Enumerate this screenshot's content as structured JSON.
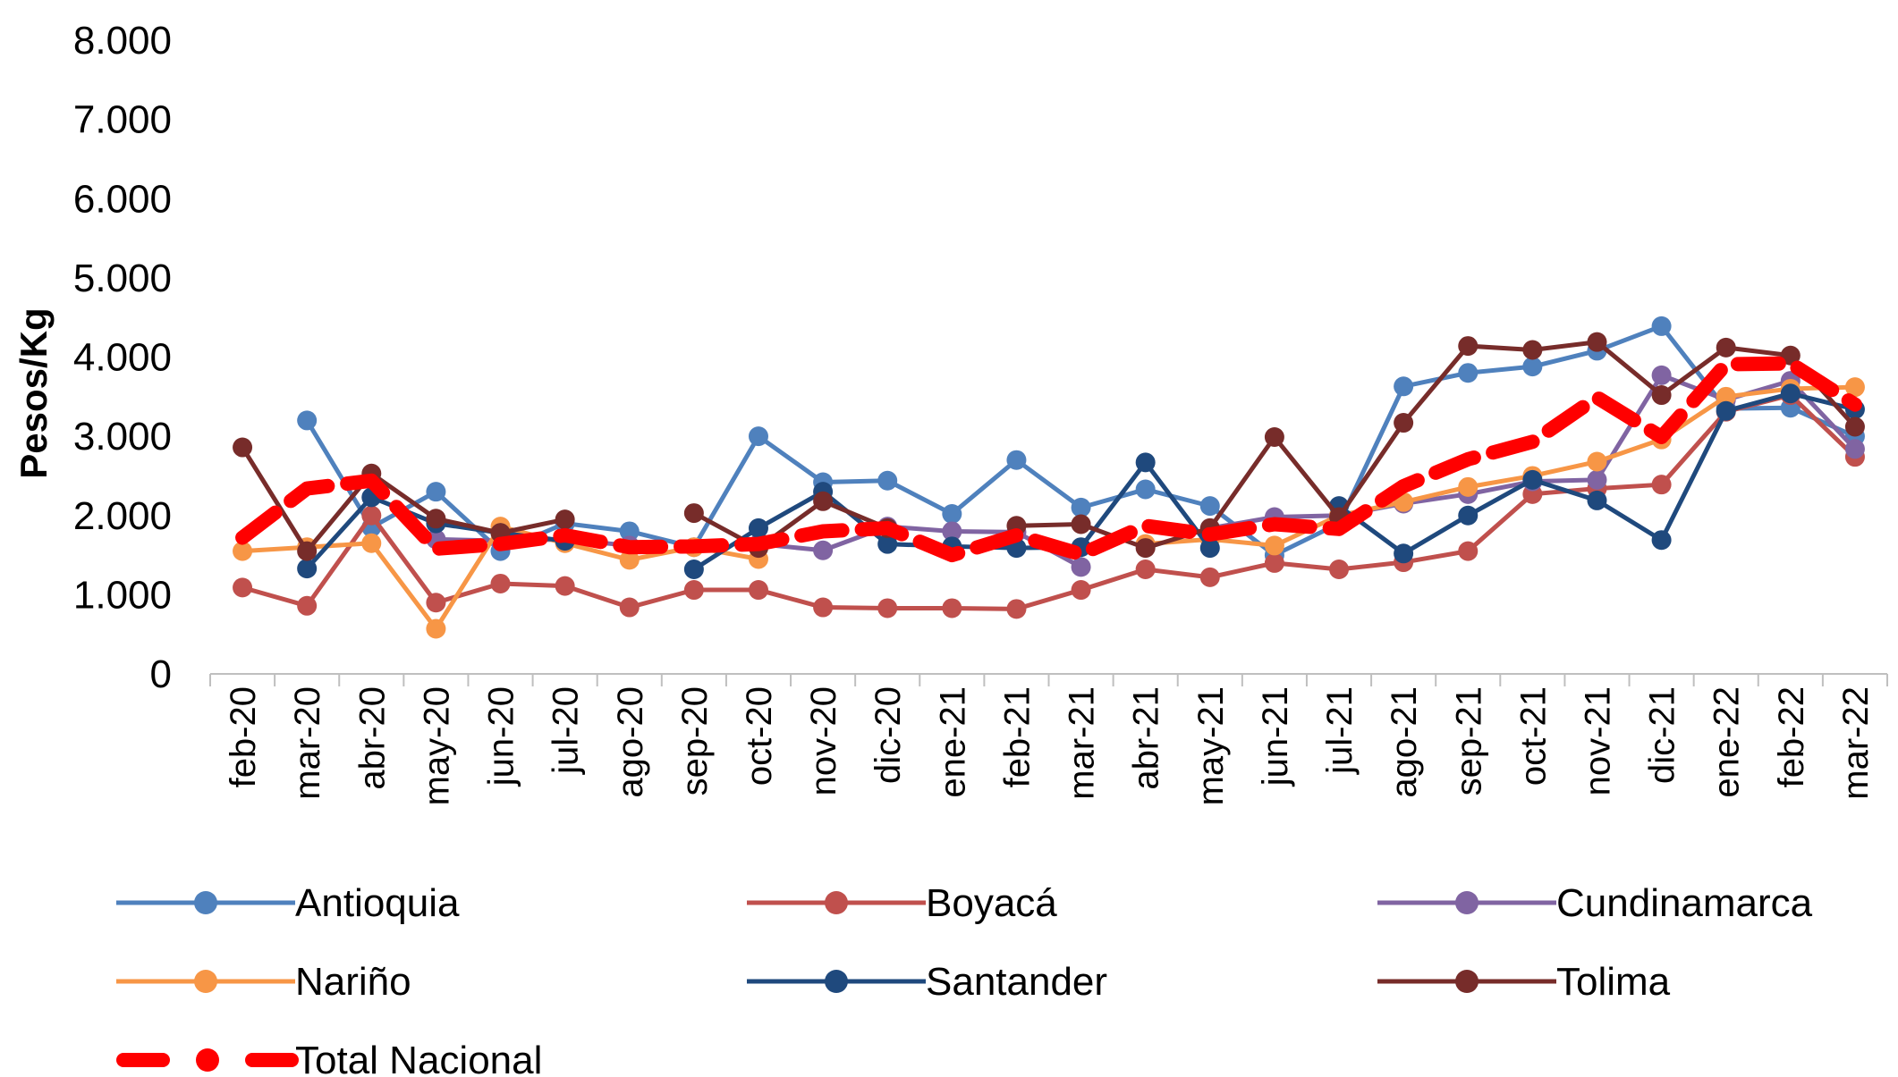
{
  "chart_data": {
    "type": "line",
    "title": "",
    "xlabel": "",
    "ylabel": "Pesos/Kg",
    "ylim": [
      0,
      8000
    ],
    "yticks": [
      0,
      1000,
      2000,
      3000,
      4000,
      5000,
      6000,
      7000,
      8000
    ],
    "ytick_labels": [
      "0",
      "1.000",
      "2.000",
      "3.000",
      "4.000",
      "5.000",
      "6.000",
      "7.000",
      "8.000"
    ],
    "grid": false,
    "legend_position": "bottom",
    "categories": [
      "feb-20",
      "mar-20",
      "abr-20",
      "may-20",
      "jun-20",
      "jul-20",
      "ago-20",
      "sep-20",
      "oct-20",
      "nov-20",
      "dic-20",
      "ene-21",
      "feb-21",
      "mar-21",
      "abr-21",
      "may-21",
      "jun-21",
      "jul-21",
      "ago-21",
      "sep-21",
      "oct-21",
      "nov-21",
      "dic-21",
      "ene-22",
      "feb-22",
      "mar-22"
    ],
    "series": [
      {
        "name": "Antioquia",
        "color": "#4F81BD",
        "style": "solid-markers",
        "values": [
          null,
          3200,
          1850,
          2300,
          1550,
          1900,
          1800,
          1600,
          3000,
          2420,
          2440,
          2020,
          2700,
          2100,
          2330,
          2120,
          1500,
          1900,
          3630,
          3800,
          3880,
          4080,
          4390,
          3350,
          3360,
          3000
        ]
      },
      {
        "name": "Boyacá",
        "color": "#C0504D",
        "style": "solid-markers",
        "values": [
          1090,
          860,
          2000,
          900,
          1140,
          1110,
          840,
          1060,
          1060,
          840,
          830,
          830,
          820,
          1060,
          1320,
          1220,
          1400,
          1320,
          1410,
          1550,
          2270,
          2340,
          2390,
          3310,
          3520,
          2740
        ]
      },
      {
        "name": "Cundinamarca",
        "color": "#8064A2",
        "style": "solid-markers",
        "values": [
          null,
          null,
          null,
          1700,
          1680,
          1700,
          1620,
          null,
          1640,
          1560,
          1860,
          1800,
          1790,
          1350,
          null,
          1840,
          1980,
          2000,
          2150,
          2270,
          2430,
          2450,
          3770,
          3460,
          3700,
          2840
        ]
      },
      {
        "name": "Nariño",
        "color": "#F79646",
        "style": "solid-markers",
        "values": [
          1550,
          1600,
          1650,
          570,
          1860,
          1650,
          1440,
          1600,
          1450,
          null,
          null,
          null,
          null,
          null,
          1640,
          1700,
          1620,
          2000,
          2170,
          2360,
          2500,
          2680,
          2960,
          3500,
          3600,
          3620
        ]
      },
      {
        "name": "Santander",
        "color": "#1F497D",
        "style": "solid-markers",
        "values": [
          null,
          1330,
          2230,
          1900,
          1780,
          1680,
          null,
          1320,
          1840,
          2300,
          1640,
          1610,
          1590,
          1600,
          2670,
          1590,
          null,
          2120,
          1520,
          2000,
          2450,
          2190,
          1690,
          3320,
          3540,
          3340
        ]
      },
      {
        "name": "Tolima",
        "color": "#772C2A",
        "style": "solid-markers",
        "values": [
          2860,
          1550,
          2530,
          1960,
          1780,
          1950,
          null,
          2030,
          1590,
          2180,
          1840,
          null,
          1870,
          1890,
          1590,
          1840,
          2990,
          1980,
          3170,
          4140,
          4090,
          4190,
          3520,
          4120,
          4020,
          3120
        ]
      },
      {
        "name": "Total Nacional",
        "color": "#FF0000",
        "style": "dashed-markers",
        "values": [
          1720,
          2340,
          2440,
          1580,
          1640,
          1750,
          1600,
          1610,
          1640,
          1800,
          1840,
          1500,
          1750,
          1510,
          1870,
          1760,
          1890,
          1830,
          2370,
          2710,
          2930,
          3490,
          2990,
          3910,
          3920,
          3400
        ]
      }
    ]
  }
}
